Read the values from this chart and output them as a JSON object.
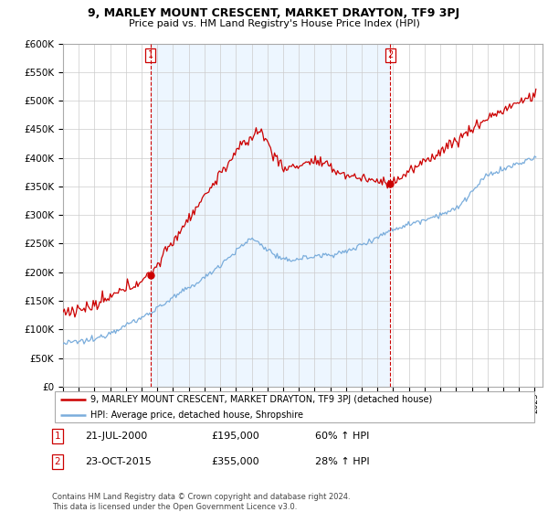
{
  "title": "9, MARLEY MOUNT CRESCENT, MARKET DRAYTON, TF9 3PJ",
  "subtitle": "Price paid vs. HM Land Registry's House Price Index (HPI)",
  "legend_line1": "9, MARLEY MOUNT CRESCENT, MARKET DRAYTON, TF9 3PJ (detached house)",
  "legend_line2": "HPI: Average price, detached house, Shropshire",
  "annotation1_label": "1",
  "annotation1_date": "21-JUL-2000",
  "annotation1_price": "£195,000",
  "annotation1_hpi": "60% ↑ HPI",
  "annotation1_year": 2000.55,
  "annotation1_value": 195000,
  "annotation2_label": "2",
  "annotation2_date": "23-OCT-2015",
  "annotation2_price": "£355,000",
  "annotation2_hpi": "28% ↑ HPI",
  "annotation2_year": 2015.81,
  "annotation2_value": 355000,
  "footer": "Contains HM Land Registry data © Crown copyright and database right 2024.\nThis data is licensed under the Open Government Licence v3.0.",
  "ylim": [
    0,
    600000
  ],
  "ytick_step": 50000,
  "red_color": "#cc0000",
  "blue_color": "#7aaddc",
  "blue_fill": "#ddeeff",
  "vline_color": "#cc0000",
  "background_color": "#ffffff",
  "grid_color": "#cccccc",
  "xmin": 1995,
  "xmax": 2025.5
}
